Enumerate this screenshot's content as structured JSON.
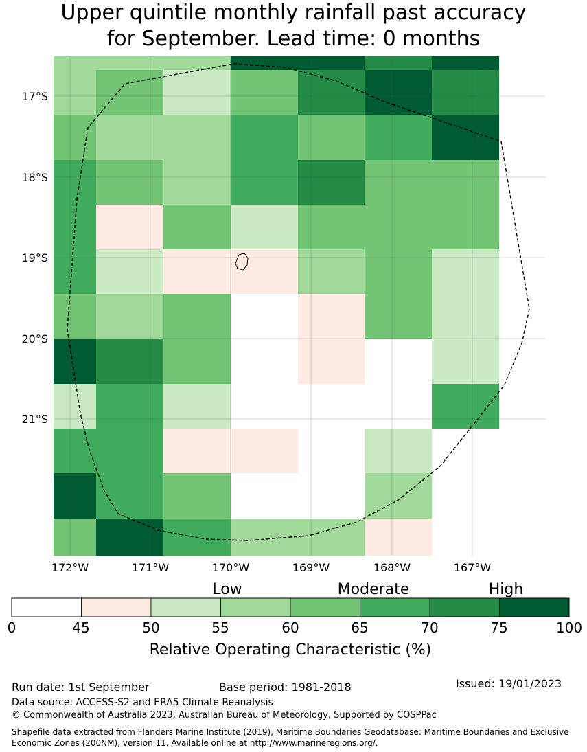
{
  "title_line1": "Upper quintile monthly rainfall past accuracy",
  "title_line2": "for September. Lead time: 0 months",
  "map": {
    "lat_labels": [
      "17°S",
      "18°S",
      "19°S",
      "20°S",
      "21°S"
    ],
    "lon_labels": [
      "172°W",
      "171°W",
      "170°W",
      "169°W",
      "168°W",
      "167°W"
    ],
    "grid_categories": [
      [
        3,
        3,
        3,
        7,
        7,
        6,
        7
      ],
      [
        3,
        4,
        2,
        4,
        6,
        7,
        6
      ],
      [
        4,
        3,
        3,
        5,
        4,
        5,
        7
      ],
      [
        5,
        4,
        3,
        5,
        6,
        4,
        4
      ],
      [
        5,
        1,
        4,
        2,
        4,
        4,
        4
      ],
      [
        5,
        2,
        1,
        1,
        3,
        4,
        2
      ],
      [
        4,
        3,
        4,
        0,
        1,
        4,
        2
      ],
      [
        7,
        6,
        4,
        0,
        1,
        0,
        2
      ],
      [
        2,
        5,
        2,
        0,
        0,
        0,
        5
      ],
      [
        5,
        5,
        1,
        1,
        0,
        2,
        0
      ],
      [
        7,
        5,
        4,
        0,
        0,
        3,
        0
      ],
      [
        4,
        7,
        5,
        3,
        3,
        1,
        0
      ]
    ]
  },
  "colorbar": {
    "category_labels": [
      "Low",
      "Moderate",
      "High"
    ],
    "ticks": [
      "0",
      "45",
      "50",
      "55",
      "60",
      "65",
      "70",
      "75",
      "100"
    ],
    "colors": [
      "#ffffff",
      "#fdebe3",
      "#c8e9c1",
      "#a1d99b",
      "#74c476",
      "#41ab5d",
      "#238b45",
      "#005a32"
    ],
    "label": "Relative Operating Characteristic (%)"
  },
  "footer": {
    "run_date": "Run date: 1st September",
    "base_period": "Base period: 1981-2018",
    "issued": "Issued: 19/01/2023",
    "data_source": "Data source: ACCESS-S2 and ERA5 Climate Reanalysis",
    "copyright": "© Commonwealth of Australia 2023, Australian Bureau of Meteorology, Supported by COSPPac",
    "shapefile_line1": "Shapefile data extracted from Flanders Marine Institute (2019), Maritime Boundaries Geodatabase: Maritime Boundaries and Exclusive",
    "shapefile_line2": "Economic Zones (200NM), version 11. Available online at http://www.marineregions.org/."
  }
}
